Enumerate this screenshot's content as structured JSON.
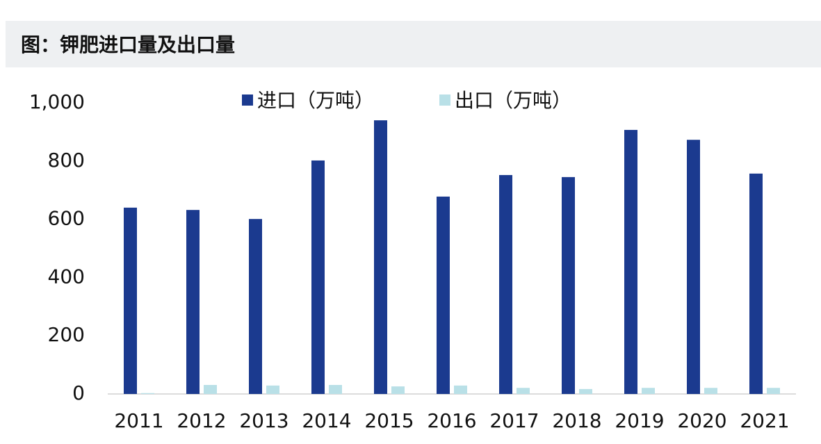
{
  "chart_data": {
    "type": "bar",
    "title": "图：钾肥进口量及出口量",
    "categories": [
      "2011",
      "2012",
      "2013",
      "2014",
      "2015",
      "2016",
      "2017",
      "2018",
      "2019",
      "2020",
      "2021"
    ],
    "series": [
      {
        "name": "进口（万吨）",
        "color": "#1b3a8f",
        "values": [
          640,
          632,
          601,
          802,
          940,
          678,
          752,
          745,
          907,
          873,
          757
        ]
      },
      {
        "name": "出口（万吨）",
        "color": "#b9e0e7",
        "values": [
          3,
          31,
          29,
          31,
          26,
          29,
          21,
          17,
          21,
          21,
          21
        ]
      }
    ],
    "ylim": [
      0,
      1000
    ],
    "yticks": [
      0,
      200,
      400,
      600,
      800,
      {
        "value": 1000,
        "label": "1,000"
      }
    ],
    "grid": false,
    "legend": "top"
  }
}
